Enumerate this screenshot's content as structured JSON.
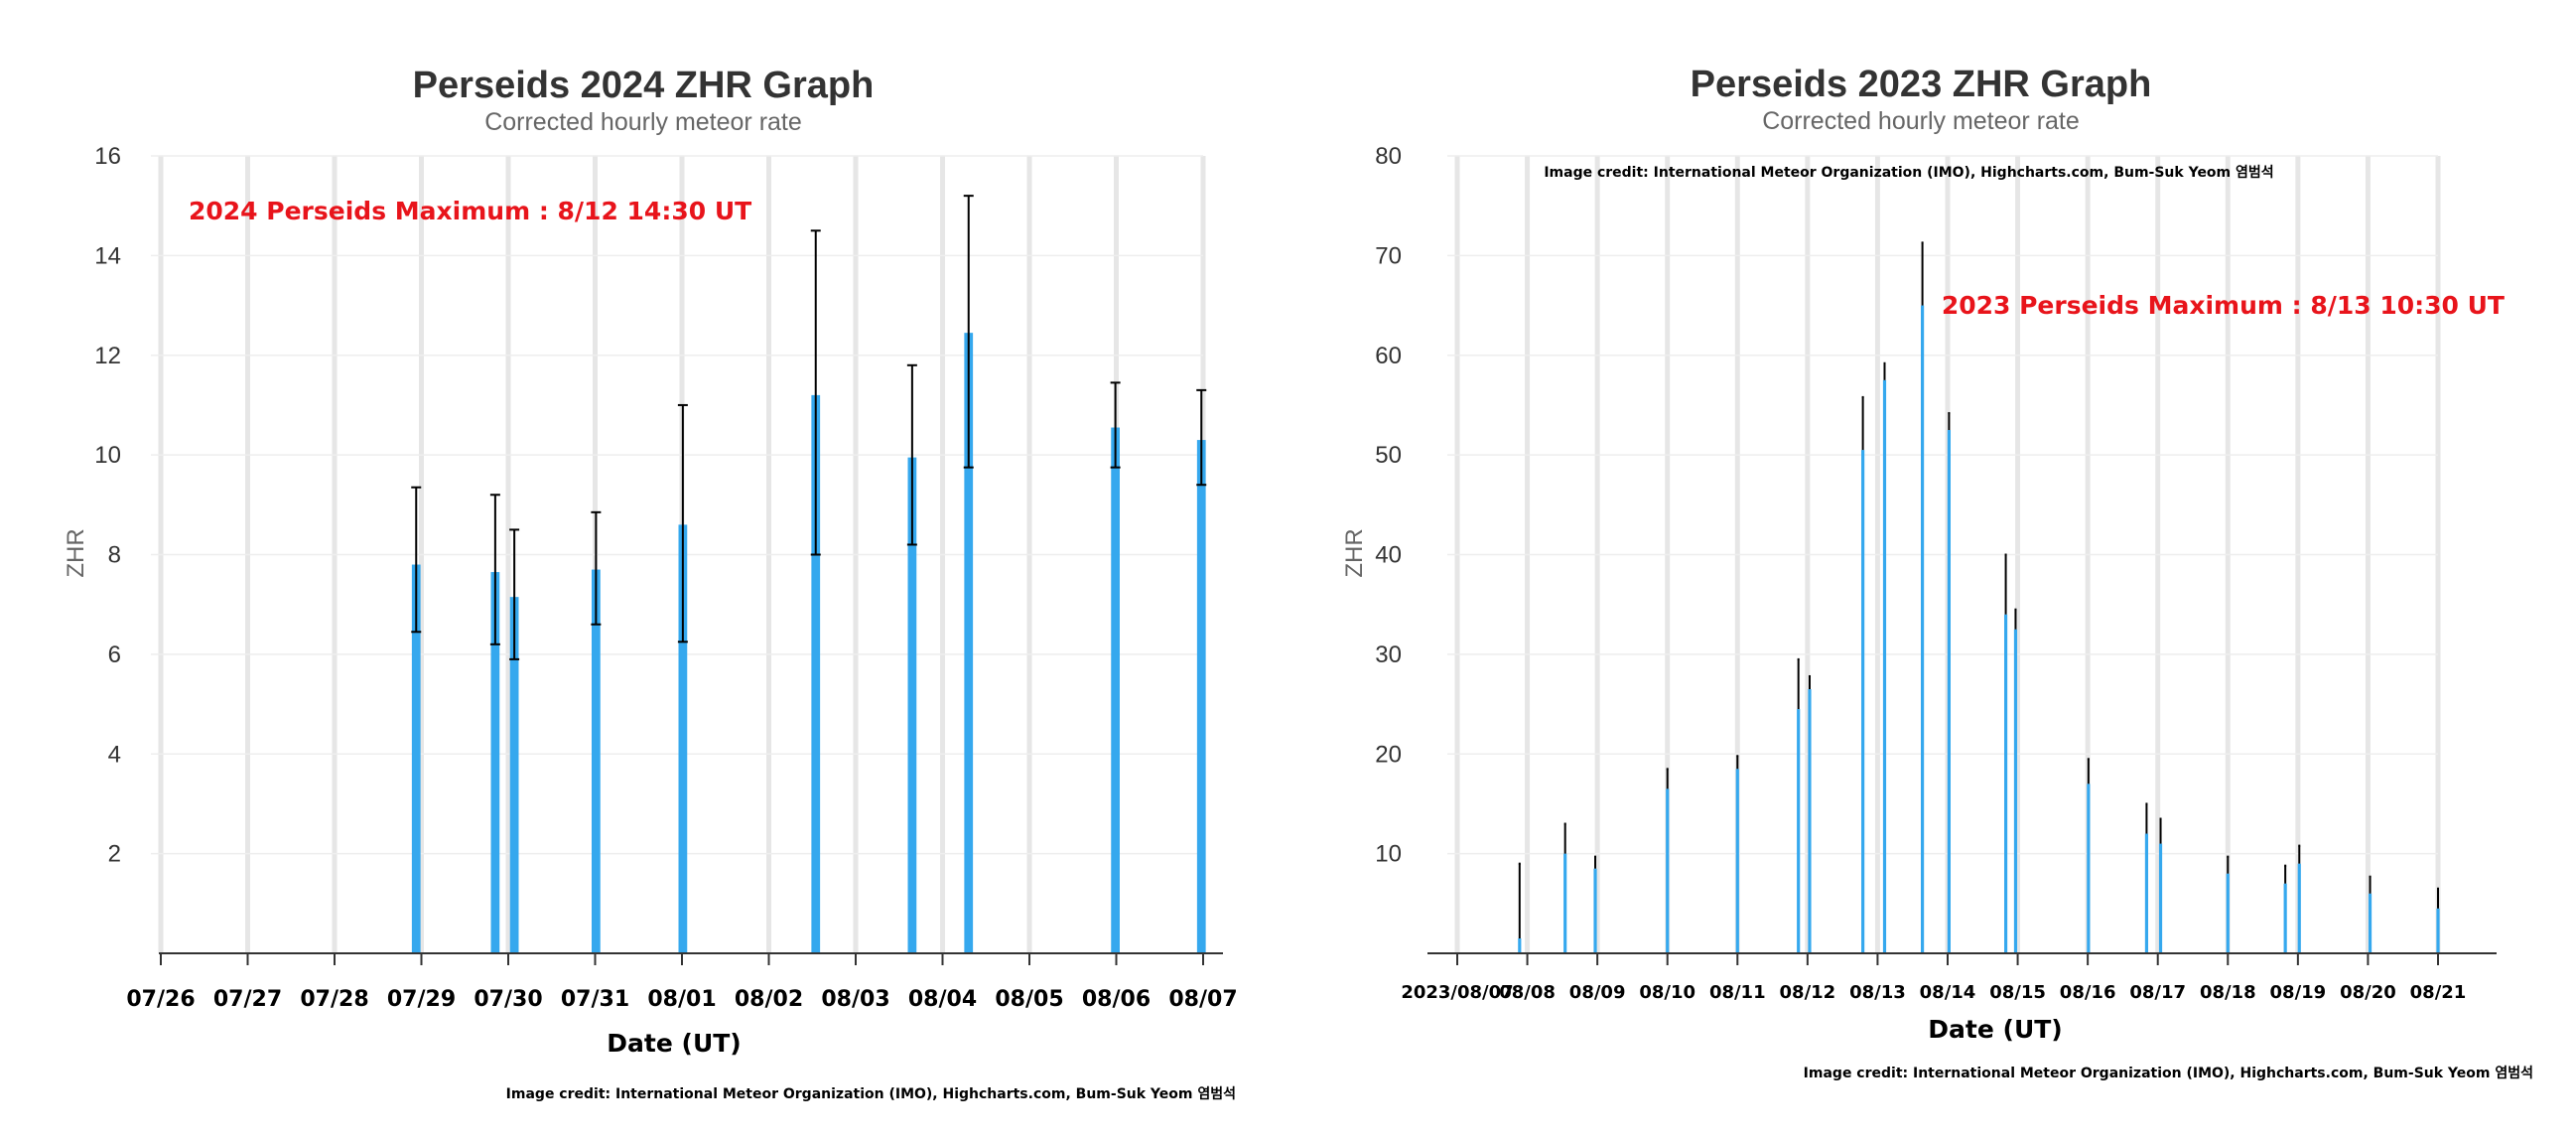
{
  "colors": {
    "bar": "#35a8ee",
    "error_bar": "#000000",
    "maximum": "#e8141b",
    "grid": "#e6e6e6"
  },
  "chart_data": [
    {
      "type": "bar",
      "title": "Perseids 2024 ZHR Graph",
      "subtitle": "Corrected hourly meteor rate",
      "ylabel": "ZHR",
      "xlabel": "Date (UT)",
      "ylim": [
        0,
        16
      ],
      "yticks": [
        "2",
        "4",
        "6",
        "8",
        "10",
        "12",
        "14",
        "16"
      ],
      "x_days": [
        0,
        12
      ],
      "xticks": [
        "07/26",
        "07/27",
        "07/28",
        "07/29",
        "07/30",
        "07/31",
        "08/01",
        "08/02",
        "08/03",
        "08/04",
        "08/05",
        "08/06",
        "08/07"
      ],
      "annotation": "2024 Perseids Maximum : 8/12 14:30 UT",
      "credit": "Image credit: International Meteor Organization (IMO), Highcharts.com, Bum-Suk Yeom 염범석",
      "bar_width_days": 0.1,
      "points": [
        {
          "day": 2.94,
          "value": 7.8,
          "low": 6.45,
          "high": 9.35
        },
        {
          "day": 3.85,
          "value": 7.65,
          "low": 6.2,
          "high": 9.2
        },
        {
          "day": 4.07,
          "value": 7.15,
          "low": 5.9,
          "high": 8.5
        },
        {
          "day": 5.01,
          "value": 7.7,
          "low": 6.6,
          "high": 8.85
        },
        {
          "day": 6.01,
          "value": 8.6,
          "low": 6.25,
          "high": 11.0
        },
        {
          "day": 7.54,
          "value": 11.2,
          "low": 8.0,
          "high": 14.5
        },
        {
          "day": 8.65,
          "value": 9.95,
          "low": 8.2,
          "high": 11.8
        },
        {
          "day": 9.3,
          "value": 12.45,
          "low": 9.75,
          "high": 15.2
        },
        {
          "day": 10.99,
          "value": 10.55,
          "low": 9.75,
          "high": 11.45
        },
        {
          "day": 11.98,
          "value": 10.3,
          "low": 9.4,
          "high": 11.3
        }
      ]
    },
    {
      "type": "bar",
      "title": "Perseids 2023 ZHR Graph",
      "subtitle": "Corrected hourly meteor rate",
      "ylabel": "ZHR",
      "xlabel": "Date (UT)",
      "ylim": [
        0,
        80
      ],
      "yticks": [
        "10",
        "20",
        "30",
        "40",
        "50",
        "60",
        "70",
        "80"
      ],
      "x_days": [
        0,
        14
      ],
      "xticks": [
        "2023/08/07",
        "08/08",
        "08/09",
        "08/10",
        "08/11",
        "08/12",
        "08/13",
        "08/14",
        "08/15",
        "08/16",
        "08/17",
        "08/18",
        "08/19",
        "08/20",
        "08/21"
      ],
      "annotation": "2023 Perseids Maximum : 8/13 10:30 UT",
      "credit_top": "Image credit: International Meteor Organization (IMO), Highcharts.com, Bum-Suk Yeom 염범석",
      "credit": "Image credit: International Meteor Organization (IMO), Highcharts.com, Bum-Suk Yeom 염범석",
      "bar_width_days": 0.045,
      "points": [
        {
          "day": 0.89,
          "value": 1.5,
          "low": 1.5,
          "high": 9.0
        },
        {
          "day": 1.54,
          "value": 10.0,
          "low": 10.0,
          "high": 13.0
        },
        {
          "day": 1.97,
          "value": 8.5,
          "low": 8.5,
          "high": 9.7
        },
        {
          "day": 3.0,
          "value": 16.5,
          "low": 16.5,
          "high": 18.5
        },
        {
          "day": 4.0,
          "value": 18.5,
          "low": 18.5,
          "high": 19.8
        },
        {
          "day": 4.87,
          "value": 24.5,
          "low": 24.5,
          "high": 29.5
        },
        {
          "day": 5.03,
          "value": 26.5,
          "low": 26.5,
          "high": 27.8
        },
        {
          "day": 5.79,
          "value": 50.5,
          "low": 50.5,
          "high": 55.8
        },
        {
          "day": 6.1,
          "value": 57.5,
          "low": 57.5,
          "high": 59.2
        },
        {
          "day": 6.64,
          "value": 65.0,
          "low": 65.0,
          "high": 71.3
        },
        {
          "day": 7.02,
          "value": 52.5,
          "low": 52.5,
          "high": 54.2
        },
        {
          "day": 7.83,
          "value": 34.0,
          "low": 34.0,
          "high": 40.0
        },
        {
          "day": 7.97,
          "value": 32.5,
          "low": 32.5,
          "high": 34.5
        },
        {
          "day": 9.01,
          "value": 17.0,
          "low": 17.0,
          "high": 19.5
        },
        {
          "day": 9.84,
          "value": 12.0,
          "low": 12.0,
          "high": 15.0
        },
        {
          "day": 10.04,
          "value": 11.0,
          "low": 11.0,
          "high": 13.5
        },
        {
          "day": 11.0,
          "value": 8.0,
          "low": 8.0,
          "high": 9.7
        },
        {
          "day": 11.82,
          "value": 7.0,
          "low": 7.0,
          "high": 8.8
        },
        {
          "day": 12.02,
          "value": 9.0,
          "low": 9.0,
          "high": 10.8
        },
        {
          "day": 13.03,
          "value": 6.0,
          "low": 6.0,
          "high": 7.7
        },
        {
          "day": 14.0,
          "value": 4.5,
          "low": 4.5,
          "high": 6.5
        }
      ]
    }
  ]
}
